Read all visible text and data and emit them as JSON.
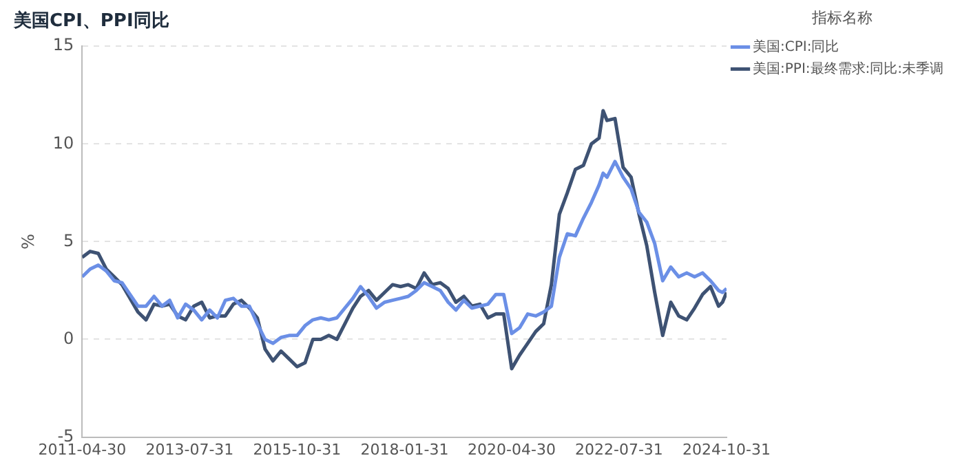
{
  "chart_data": {
    "type": "line",
    "title": "美国CPI、PPI同比",
    "ylabel": "%",
    "legend_title": "指标名称",
    "legend": "top right",
    "grid": "y",
    "marker": "none",
    "line_style": "solid",
    "xlim": [
      "2011-04-30",
      "2024-10-31"
    ],
    "xticks": [
      "2011-04-30",
      "2013-07-31",
      "2015-10-31",
      "2018-01-31",
      "2020-04-30",
      "2022-07-31",
      "2024-10-31"
    ],
    "ylim": [
      -5,
      15
    ],
    "yticks": [
      -5,
      0,
      5,
      10,
      15
    ],
    "x": [
      "2011-04-30",
      "2011-06-30",
      "2011-08-31",
      "2011-10-31",
      "2011-12-31",
      "2012-02-29",
      "2012-04-30",
      "2012-06-30",
      "2012-08-31",
      "2012-10-31",
      "2012-12-31",
      "2013-02-28",
      "2013-04-30",
      "2013-06-30",
      "2013-08-31",
      "2013-10-31",
      "2013-12-31",
      "2014-02-28",
      "2014-04-30",
      "2014-06-30",
      "2014-08-31",
      "2014-10-31",
      "2014-12-31",
      "2015-02-28",
      "2015-04-30",
      "2015-06-30",
      "2015-08-31",
      "2015-10-31",
      "2015-12-31",
      "2016-02-29",
      "2016-04-30",
      "2016-06-30",
      "2016-08-31",
      "2016-10-31",
      "2016-12-31",
      "2017-02-28",
      "2017-04-30",
      "2017-06-30",
      "2017-08-31",
      "2017-10-31",
      "2017-12-31",
      "2018-02-28",
      "2018-04-30",
      "2018-06-30",
      "2018-08-31",
      "2018-10-31",
      "2018-12-31",
      "2019-02-28",
      "2019-04-30",
      "2019-06-30",
      "2019-08-31",
      "2019-10-31",
      "2019-12-31",
      "2020-02-29",
      "2020-04-30",
      "2020-06-30",
      "2020-08-31",
      "2020-10-31",
      "2020-12-31",
      "2021-02-28",
      "2021-04-30",
      "2021-06-30",
      "2021-08-31",
      "2021-10-31",
      "2021-12-31",
      "2022-02-28",
      "2022-03-31",
      "2022-04-30",
      "2022-06-30",
      "2022-08-31",
      "2022-10-31",
      "2022-12-31",
      "2023-02-28",
      "2023-04-30",
      "2023-06-30",
      "2023-08-31",
      "2023-10-31",
      "2023-12-31",
      "2024-02-29",
      "2024-04-30",
      "2024-06-30",
      "2024-08-31",
      "2024-09-30",
      "2024-10-31"
    ],
    "series": [
      {
        "name": "美国:CPI:同比",
        "color": "#6b8fe6",
        "values": [
          3.2,
          3.6,
          3.8,
          3.5,
          3.0,
          2.9,
          2.3,
          1.7,
          1.7,
          2.2,
          1.7,
          2.0,
          1.1,
          1.8,
          1.5,
          1.0,
          1.5,
          1.1,
          2.0,
          2.1,
          1.7,
          1.7,
          0.8,
          0.0,
          -0.2,
          0.1,
          0.2,
          0.2,
          0.7,
          1.0,
          1.1,
          1.0,
          1.1,
          1.6,
          2.1,
          2.7,
          2.2,
          1.6,
          1.9,
          2.0,
          2.1,
          2.2,
          2.5,
          2.9,
          2.7,
          2.5,
          1.9,
          1.5,
          2.0,
          1.6,
          1.7,
          1.8,
          2.3,
          2.3,
          0.3,
          0.6,
          1.3,
          1.2,
          1.4,
          1.7,
          4.2,
          5.4,
          5.3,
          6.2,
          7.0,
          7.9,
          8.5,
          8.3,
          9.1,
          8.3,
          7.7,
          6.5,
          6.0,
          4.9,
          3.0,
          3.7,
          3.2,
          3.4,
          3.2,
          3.4,
          3.0,
          2.5,
          2.4,
          2.6
        ]
      },
      {
        "name": "美国:PPI:最终需求:同比:未季调",
        "color": "#3e5273",
        "values": [
          4.2,
          4.5,
          4.4,
          3.6,
          3.2,
          2.8,
          2.1,
          1.4,
          1.0,
          1.8,
          1.7,
          1.8,
          1.2,
          1.0,
          1.7,
          1.9,
          1.1,
          1.2,
          1.2,
          1.8,
          2.0,
          1.6,
          1.1,
          -0.5,
          -1.1,
          -0.6,
          -1.0,
          -1.4,
          -1.2,
          0.0,
          0.0,
          0.2,
          0.0,
          0.8,
          1.6,
          2.2,
          2.5,
          2.0,
          2.4,
          2.8,
          2.7,
          2.8,
          2.6,
          3.4,
          2.8,
          2.9,
          2.6,
          1.9,
          2.2,
          1.7,
          1.8,
          1.1,
          1.3,
          1.3,
          -1.5,
          -0.8,
          -0.2,
          0.4,
          0.8,
          2.8,
          6.4,
          7.5,
          8.7,
          8.9,
          10.0,
          10.3,
          11.7,
          11.2,
          11.3,
          8.8,
          8.3,
          6.4,
          4.8,
          2.4,
          0.2,
          1.9,
          1.2,
          1.0,
          1.6,
          2.3,
          2.7,
          1.7,
          1.9,
          2.4
        ]
      }
    ]
  }
}
